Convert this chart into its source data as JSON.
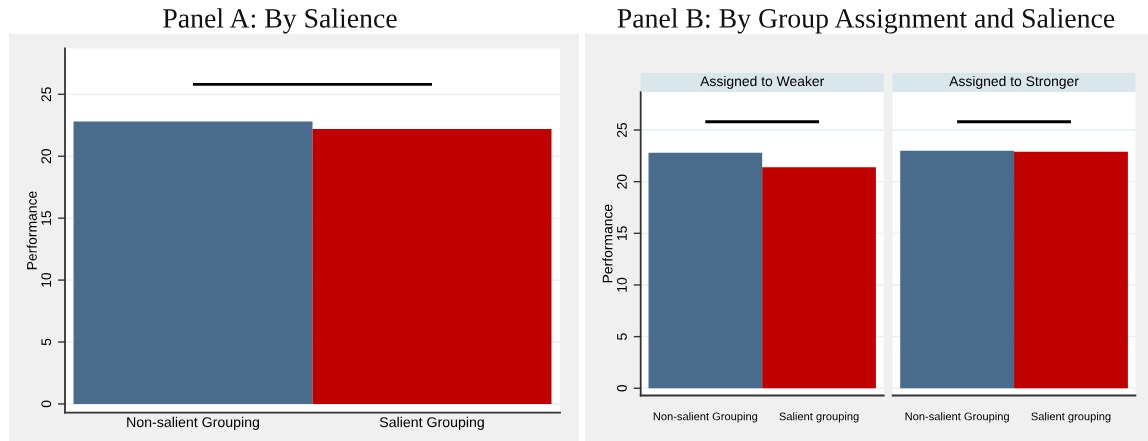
{
  "chart_data": [
    {
      "type": "bar",
      "title": "Panel A: By Salience",
      "ylabel": "Performance",
      "categories": [
        "Non-salient Grouping",
        "Salient Grouping"
      ],
      "series": [
        {
          "values": [
            22.8,
            22.2
          ],
          "colors": [
            "#4a6c8c",
            "#c00000"
          ]
        },
        {
          "type": "line",
          "x": [
            "Non-salient Grouping",
            "Salient Grouping"
          ],
          "values": [
            25.8,
            25.8
          ],
          "color": "#000000"
        }
      ],
      "ylim": [
        -0.7,
        28.7
      ],
      "yticks": [
        0,
        5,
        10,
        15,
        20,
        25
      ],
      "grid": "y"
    },
    {
      "type": "bar",
      "title": "Panel B: By Group Assignment and Salience",
      "subtitle": "Assigned to Weaker",
      "ylabel": "Performance",
      "categories": [
        "Non-salient Grouping",
        "Salient grouping"
      ],
      "series": [
        {
          "values": [
            22.8,
            21.4
          ],
          "colors": [
            "#4a6c8c",
            "#c00000"
          ]
        },
        {
          "type": "line",
          "x": [
            "Non-salient Grouping",
            "Salient grouping"
          ],
          "values": [
            25.8,
            25.8
          ],
          "color": "#000000"
        }
      ],
      "ylim": [
        -0.7,
        28.7
      ],
      "yticks": [
        0,
        5,
        10,
        15,
        20,
        25
      ],
      "grid": "y"
    },
    {
      "type": "bar",
      "subtitle": "Assigned to Stronger",
      "categories": [
        "Non-salient Grouping",
        "Salient grouping"
      ],
      "series": [
        {
          "values": [
            23.0,
            22.9
          ],
          "colors": [
            "#4a6c8c",
            "#c00000"
          ]
        },
        {
          "type": "line",
          "x": [
            "Non-salient Grouping",
            "Salient grouping"
          ],
          "values": [
            25.8,
            25.8
          ],
          "color": "#000000"
        }
      ],
      "ylim": [
        -0.7,
        28.7
      ],
      "yticks": [
        0,
        5,
        10,
        15,
        20,
        25
      ],
      "grid": "y",
      "tick_labels": "x"
    }
  ]
}
